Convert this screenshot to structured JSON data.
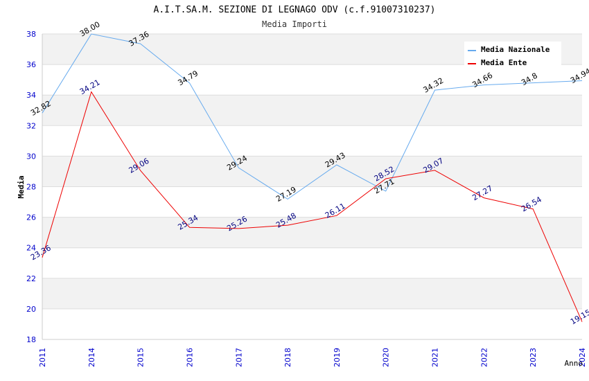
{
  "chart_data": {
    "type": "line",
    "title": "A.I.T.SA.M. SEZIONE DI LEGNAGO ODV (c.f.91007310237)",
    "subtitle": "Media Importi",
    "xlabel": "Anno",
    "ylabel": "Media",
    "categories": [
      "2011",
      "2014",
      "2015",
      "2016",
      "2017",
      "2018",
      "2019",
      "2020",
      "2021",
      "2022",
      "2023",
      "2024"
    ],
    "ylim": [
      18,
      38
    ],
    "yticks": [
      "18",
      "20",
      "22",
      "24",
      "26",
      "28",
      "30",
      "32",
      "34",
      "36",
      "38"
    ],
    "grid": "horizontal",
    "legend_position": "top-right",
    "series": [
      {
        "name": "Media Nazionale",
        "color": "#66aaee",
        "label_color": "#000000",
        "values": [
          32.82,
          38.0,
          37.36,
          34.79,
          29.24,
          27.19,
          29.43,
          27.71,
          34.32,
          34.66,
          34.8,
          34.94
        ],
        "labels": [
          "32.82",
          "38.00",
          "37.36",
          "34.79",
          "29.24",
          "27.19",
          "29.43",
          "27.71",
          "34.32",
          "34.66",
          "34.8",
          "34.94"
        ]
      },
      {
        "name": "Media Ente",
        "color": "#ee0000",
        "label_color": "#000080",
        "values": [
          23.36,
          34.21,
          29.06,
          25.34,
          25.26,
          25.48,
          26.11,
          28.52,
          29.07,
          27.27,
          26.54,
          19.15
        ],
        "labels": [
          "23.36",
          "34.21",
          "29.06",
          "25.34",
          "25.26",
          "25.48",
          "26.11",
          "28.52",
          "29.07",
          "27.27",
          "26.54",
          "19.15"
        ]
      }
    ]
  }
}
